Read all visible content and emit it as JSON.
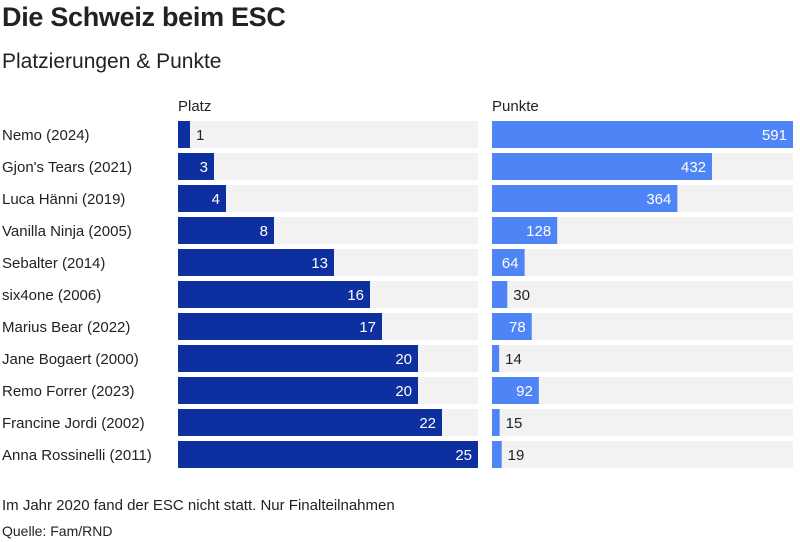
{
  "title": "Die Schweiz beim ESC",
  "subtitle": "Platzierungen & Punkte",
  "note": "Im Jahr 2020 fand der ESC nicht statt. Nur Finalteilnahmen",
  "source": "Quelle: Fam/RND",
  "colors": {
    "platz_bar": "#0d2f9f",
    "punkte_bar": "#4f84f7",
    "track": "#f2f2f2",
    "text": "#222222",
    "inside_label": "#ffffff"
  },
  "chart_data": [
    {
      "type": "bar",
      "orientation": "horizontal",
      "title": "Platz",
      "categories": [
        "Nemo (2024)",
        "Gjon's Tears (2021)",
        "Luca Hänni (2019)",
        "Vanilla Ninja (2005)",
        "Sebalter (2014)",
        "six4one (2006)",
        "Marius Bear (2022)",
        "Jane Bogaert (2000)",
        "Remo Forrer (2023)",
        "Francine Jordi (2002)",
        "Anna Rossinelli (2011)"
      ],
      "values": [
        1,
        3,
        4,
        8,
        13,
        16,
        17,
        20,
        20,
        22,
        25
      ],
      "xlim": [
        0,
        25
      ],
      "grid": false
    },
    {
      "type": "bar",
      "orientation": "horizontal",
      "title": "Punkte",
      "categories": [
        "Nemo (2024)",
        "Gjon's Tears (2021)",
        "Luca Hänni (2019)",
        "Vanilla Ninja (2005)",
        "Sebalter (2014)",
        "six4one (2006)",
        "Marius Bear (2022)",
        "Jane Bogaert (2000)",
        "Remo Forrer (2023)",
        "Francine Jordi (2002)",
        "Anna Rossinelli (2011)"
      ],
      "values": [
        591,
        432,
        364,
        128,
        64,
        30,
        78,
        14,
        92,
        15,
        19
      ],
      "xlim": [
        0,
        591
      ],
      "grid": false
    }
  ]
}
